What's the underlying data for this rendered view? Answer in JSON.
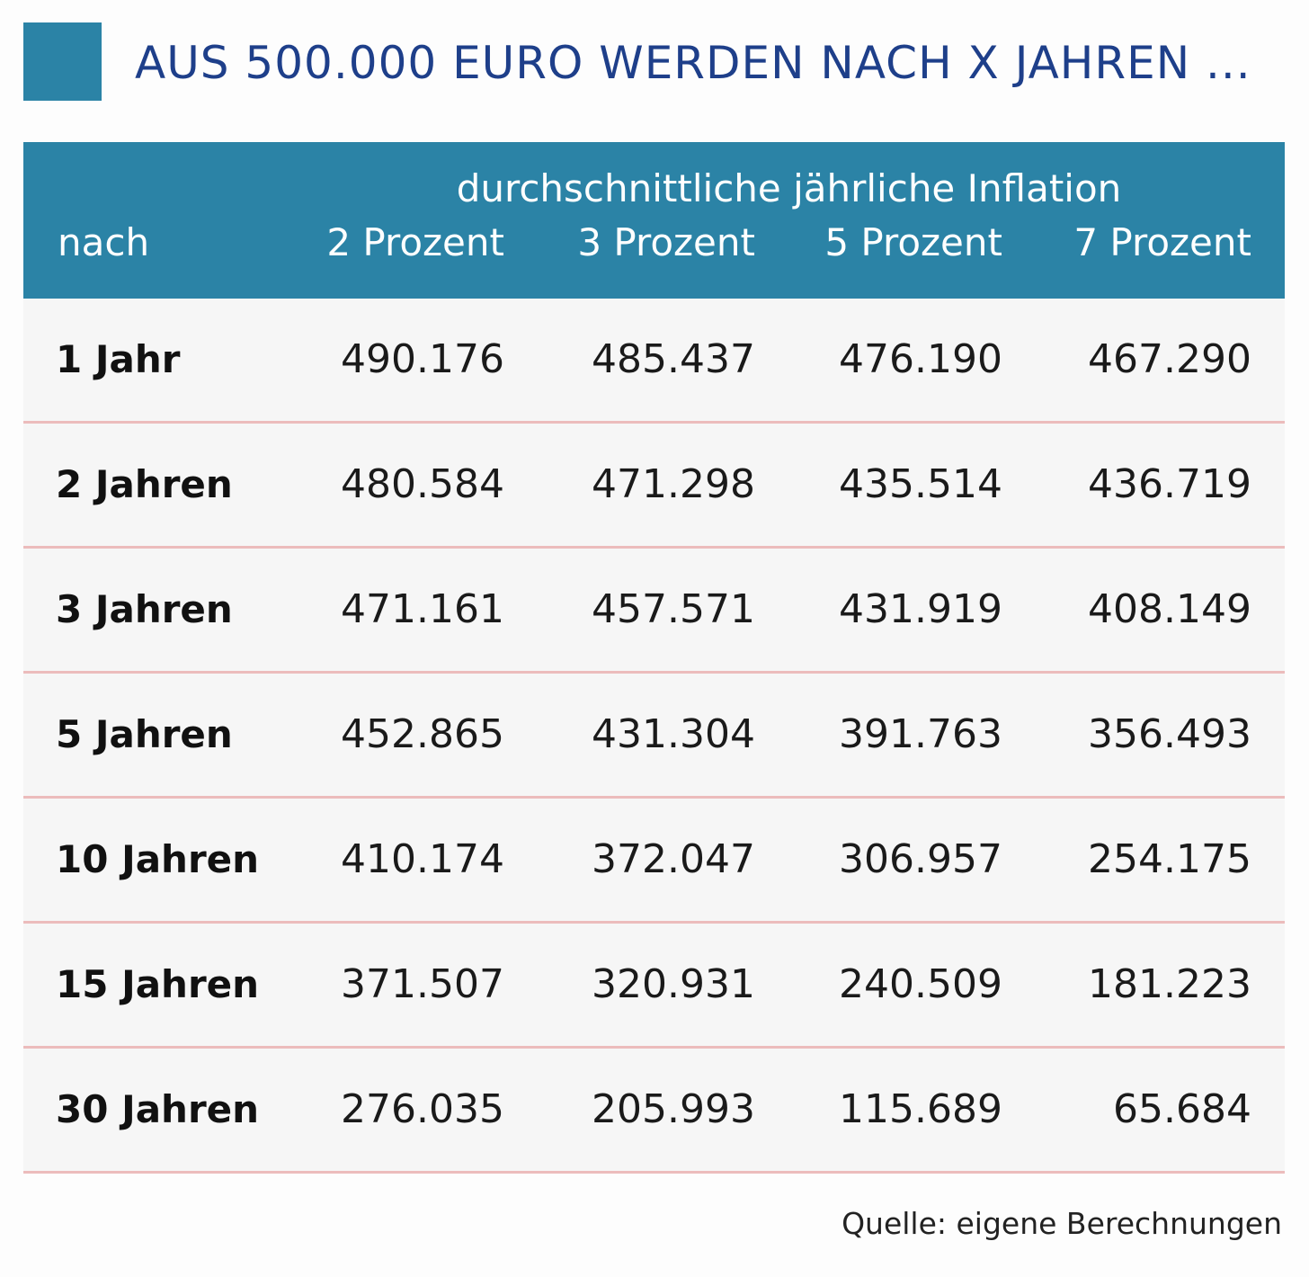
{
  "colors": {
    "accent": "#2b83a6",
    "title": "#1e3f8a",
    "header_text": "#ffffff",
    "row_divider": "#ecbcbc"
  },
  "title": "AUS 500.000 EURO WERDEN NACH X JAHREN ...",
  "source": "Quelle: eigene Berechnungen",
  "chart_data": {
    "type": "table",
    "title": "AUS 500.000 EURO WERDEN NACH X JAHREN ...",
    "super_header": "durchschnittliche jährliche Inflation",
    "columns": [
      "nach",
      "2 Prozent",
      "3 Prozent",
      "5 Prozent",
      "7 Prozent"
    ],
    "rows": [
      {
        "label": "1 Jahr",
        "values": [
          "490.176",
          "485.437",
          "476.190",
          "467.290"
        ]
      },
      {
        "label": "2 Jahren",
        "values": [
          "480.584",
          "471.298",
          "435.514",
          "436.719"
        ]
      },
      {
        "label": "3 Jahren",
        "values": [
          "471.161",
          "457.571",
          "431.919",
          "408.149"
        ]
      },
      {
        "label": "5 Jahren",
        "values": [
          "452.865",
          "431.304",
          "391.763",
          "356.493"
        ]
      },
      {
        "label": "10 Jahren",
        "values": [
          "410.174",
          "372.047",
          "306.957",
          "254.175"
        ]
      },
      {
        "label": "15 Jahren",
        "values": [
          "371.507",
          "320.931",
          "240.509",
          "181.223"
        ]
      },
      {
        "label": "30 Jahren",
        "values": [
          "276.035",
          "205.993",
          "115.689",
          "65.684"
        ]
      }
    ],
    "source": "Quelle: eigene Berechnungen"
  }
}
